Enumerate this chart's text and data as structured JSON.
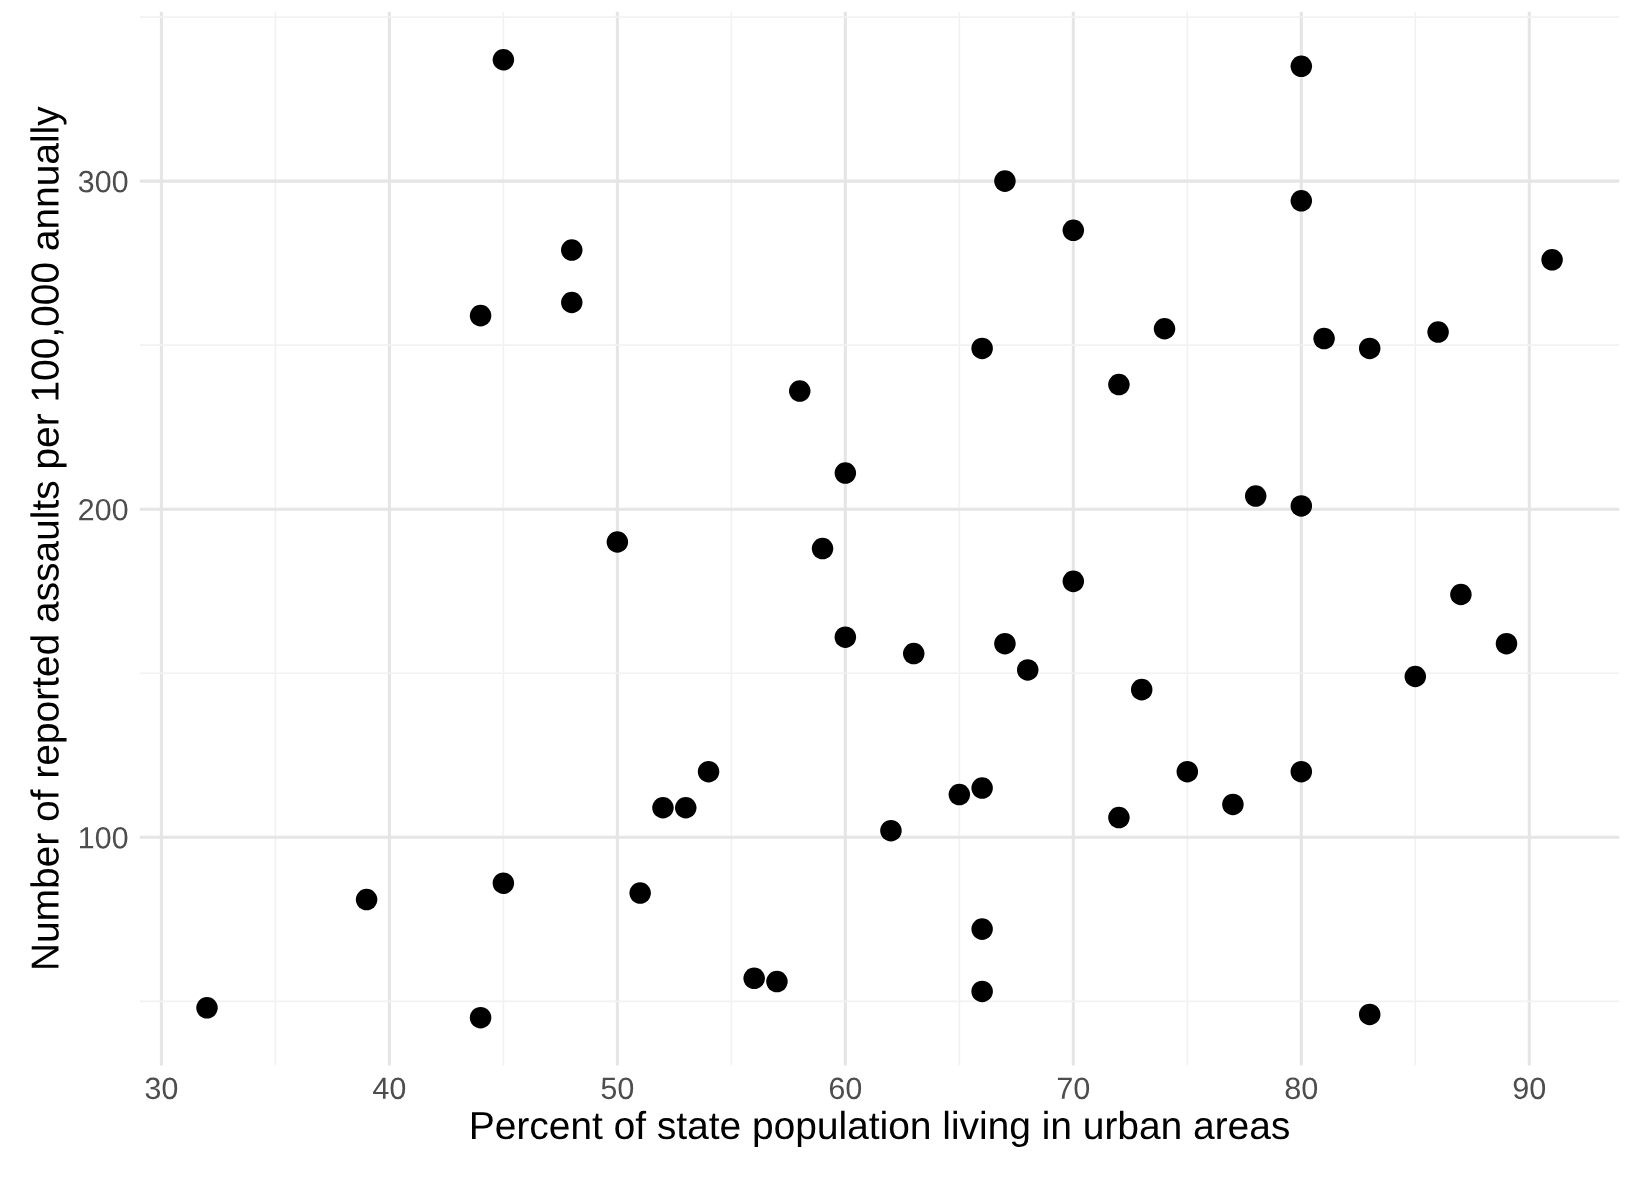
{
  "chart_data": {
    "type": "scatter",
    "xlabel": "Percent of state population living in urban areas",
    "ylabel": "Number of reported assaults per 100,000 annually",
    "xlim": [
      29.05,
      93.95
    ],
    "ylim": [
      30.4,
      351.6
    ],
    "xticks": [
      30,
      {
        "value": 35,
        "label": null
      },
      40,
      {
        "value": 45,
        "label": null
      },
      50,
      {
        "value": 55,
        "label": null
      },
      60,
      {
        "value": 65,
        "label": null
      },
      70,
      {
        "value": 75,
        "label": null
      },
      80,
      {
        "value": 85,
        "label": null
      },
      90
    ],
    "yticks": [
      {
        "value": 50,
        "label": null
      },
      100,
      {
        "value": 150,
        "label": null
      },
      200,
      {
        "value": 250,
        "label": null
      },
      300,
      {
        "value": 350,
        "label": null
      }
    ],
    "grid": true,
    "marker": "circle",
    "series": [
      {
        "color": "#000000",
        "x": [
          58,
          48,
          80,
          50,
          91,
          78,
          77,
          72,
          80,
          60,
          83,
          54,
          83,
          65,
          57,
          66,
          52,
          66,
          51,
          67,
          85,
          74,
          66,
          44,
          70,
          53,
          62,
          81,
          56,
          89,
          70,
          86,
          45,
          44,
          75,
          68,
          67,
          72,
          87,
          48,
          45,
          59,
          80,
          80,
          32,
          63,
          73,
          39,
          66,
          60
        ],
        "values": [
          236,
          263,
          294,
          190,
          276,
          204,
          110,
          238,
          335,
          211,
          46,
          120,
          249,
          113,
          56,
          115,
          109,
          249,
          83,
          300,
          149,
          255,
          72,
          259,
          178,
          109,
          102,
          252,
          57,
          159,
          285,
          254,
          337,
          45,
          120,
          151,
          159,
          106,
          174,
          279,
          86,
          188,
          201,
          120,
          48,
          156,
          145,
          81,
          53,
          161
        ]
      }
    ]
  }
}
